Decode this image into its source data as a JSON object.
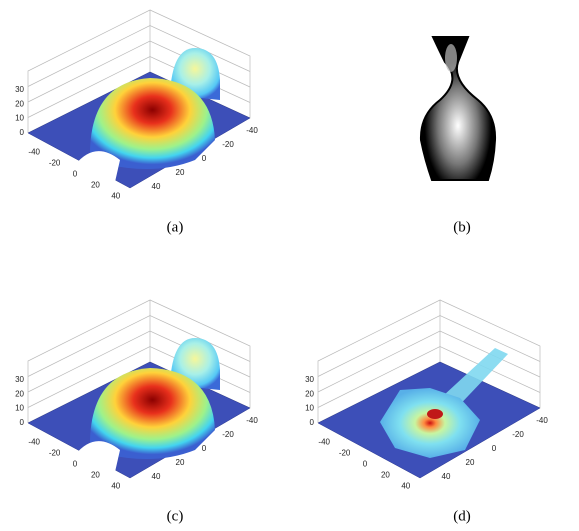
{
  "panels": [
    {
      "caption": "(a)",
      "z_ticks": [
        0,
        10,
        20,
        30
      ],
      "x_ticks": [
        -40,
        -20,
        0,
        20,
        40
      ],
      "y_ticks": [
        -40,
        -20,
        0,
        20,
        40
      ]
    },
    {
      "caption": "(b)"
    },
    {
      "caption": "(c)",
      "z_ticks": [
        0,
        10,
        20,
        30
      ],
      "x_ticks": [
        -40,
        -20,
        0,
        20,
        40
      ],
      "y_ticks": [
        -40,
        -20,
        0,
        20,
        40
      ]
    },
    {
      "caption": "(d)",
      "z_ticks": [
        0,
        10,
        20,
        30
      ],
      "x_ticks": [
        -40,
        -20,
        0,
        20,
        40
      ],
      "y_ticks": [
        -40,
        -20,
        0,
        20,
        40
      ]
    }
  ]
}
